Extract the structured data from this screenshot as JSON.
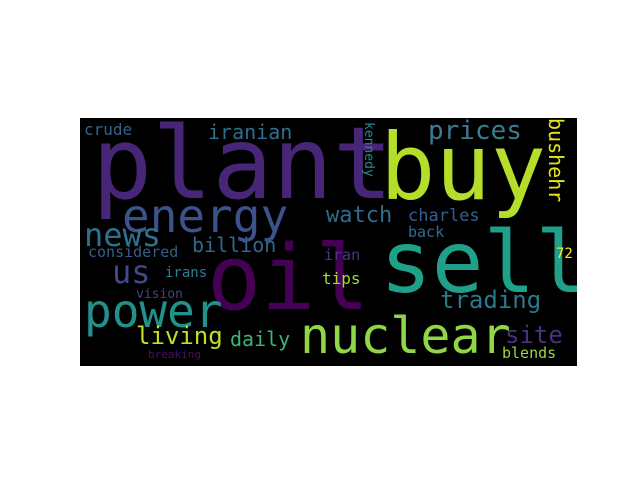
{
  "words": [
    {
      "text": "plant",
      "color": "#482677"
    },
    {
      "text": "buy",
      "color": "#b5de2b"
    },
    {
      "text": "oil",
      "color": "#440154"
    },
    {
      "text": "sell",
      "color": "#1fa088"
    },
    {
      "text": "nuclear",
      "color": "#8fd744"
    },
    {
      "text": "energy",
      "color": "#3b528b"
    },
    {
      "text": "power",
      "color": "#21918c"
    },
    {
      "text": "news",
      "color": "#2c728e"
    },
    {
      "text": "us",
      "color": "#3e4a89"
    },
    {
      "text": "prices",
      "color": "#3b7c8f"
    },
    {
      "text": "trading",
      "color": "#2a788e"
    },
    {
      "text": "living",
      "color": "#c2df23"
    },
    {
      "text": "daily",
      "color": "#35b779"
    },
    {
      "text": "site",
      "color": "#46327e"
    },
    {
      "text": "watch",
      "color": "#2f6c8e"
    },
    {
      "text": "iranian",
      "color": "#2e6e8e"
    },
    {
      "text": "billion",
      "color": "#31688e"
    },
    {
      "text": "charles",
      "color": "#35608d"
    },
    {
      "text": "bushehr",
      "color": "#e7e419"
    },
    {
      "text": "crude",
      "color": "#33638d"
    },
    {
      "text": "considered",
      "color": "#355e8d"
    },
    {
      "text": "back",
      "color": "#2d708e"
    },
    {
      "text": "tips",
      "color": "#a0da39"
    },
    {
      "text": "iran",
      "color": "#443983"
    },
    {
      "text": "irans",
      "color": "#27808e"
    },
    {
      "text": "vision",
      "color": "#414487"
    },
    {
      "text": "kennedy",
      "color": "#238a8d"
    },
    {
      "text": "blends",
      "color": "#9bd93c"
    },
    {
      "text": "72",
      "color": "#fde725"
    },
    {
      "text": "breaking",
      "color": "#471063"
    }
  ]
}
